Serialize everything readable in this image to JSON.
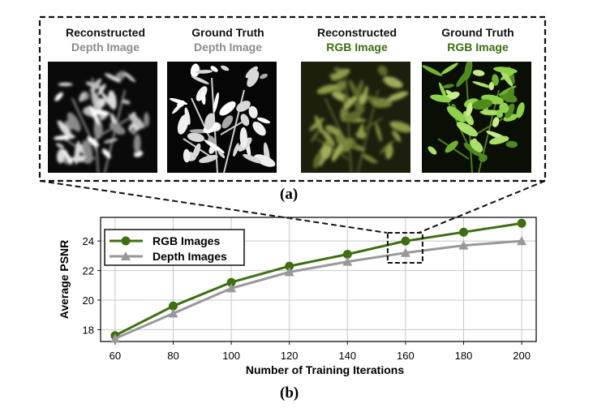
{
  "panel_a": {
    "label": "(a)",
    "images": [
      {
        "line1": "Reconstructed",
        "line2": "Depth Image",
        "line2_color": "#8c8c8c",
        "kind": "depth-recon"
      },
      {
        "line1": "Ground Truth",
        "line2": "Depth Image",
        "line2_color": "#8c8c8c",
        "kind": "depth-gt"
      },
      {
        "line1": "Reconstructed",
        "line2": "RGB Image",
        "line2_color": "#3f6e12",
        "kind": "rgb-recon"
      },
      {
        "line1": "Ground Truth",
        "line2": "RGB Image",
        "line2_color": "#3f6e12",
        "kind": "rgb-gt"
      }
    ]
  },
  "panel_b": {
    "label": "(b)"
  },
  "chart_data": {
    "type": "line",
    "x": [
      60,
      80,
      100,
      120,
      140,
      160,
      180,
      200
    ],
    "xlabel": "Number of Training Iterations",
    "ylabel": "Average PSNR",
    "xlim": [
      55,
      205
    ],
    "ylim": [
      17.2,
      25.6
    ],
    "xticks": [
      "60",
      "80",
      "100",
      "120",
      "140",
      "160",
      "180",
      "200"
    ],
    "yticks": [
      "18",
      "20",
      "22",
      "24"
    ],
    "grid": true,
    "legend_position": "top-left",
    "highlight_x": 160,
    "series": [
      {
        "name": "RGB Images",
        "color": "#3f6e12",
        "marker": "circle",
        "values": [
          17.6,
          19.6,
          21.2,
          22.3,
          23.1,
          24.0,
          24.6,
          25.2
        ]
      },
      {
        "name": "Depth Images",
        "color": "#999999",
        "marker": "triangle",
        "values": [
          17.4,
          19.1,
          20.8,
          21.9,
          22.6,
          23.2,
          23.7,
          24.0
        ]
      }
    ]
  }
}
